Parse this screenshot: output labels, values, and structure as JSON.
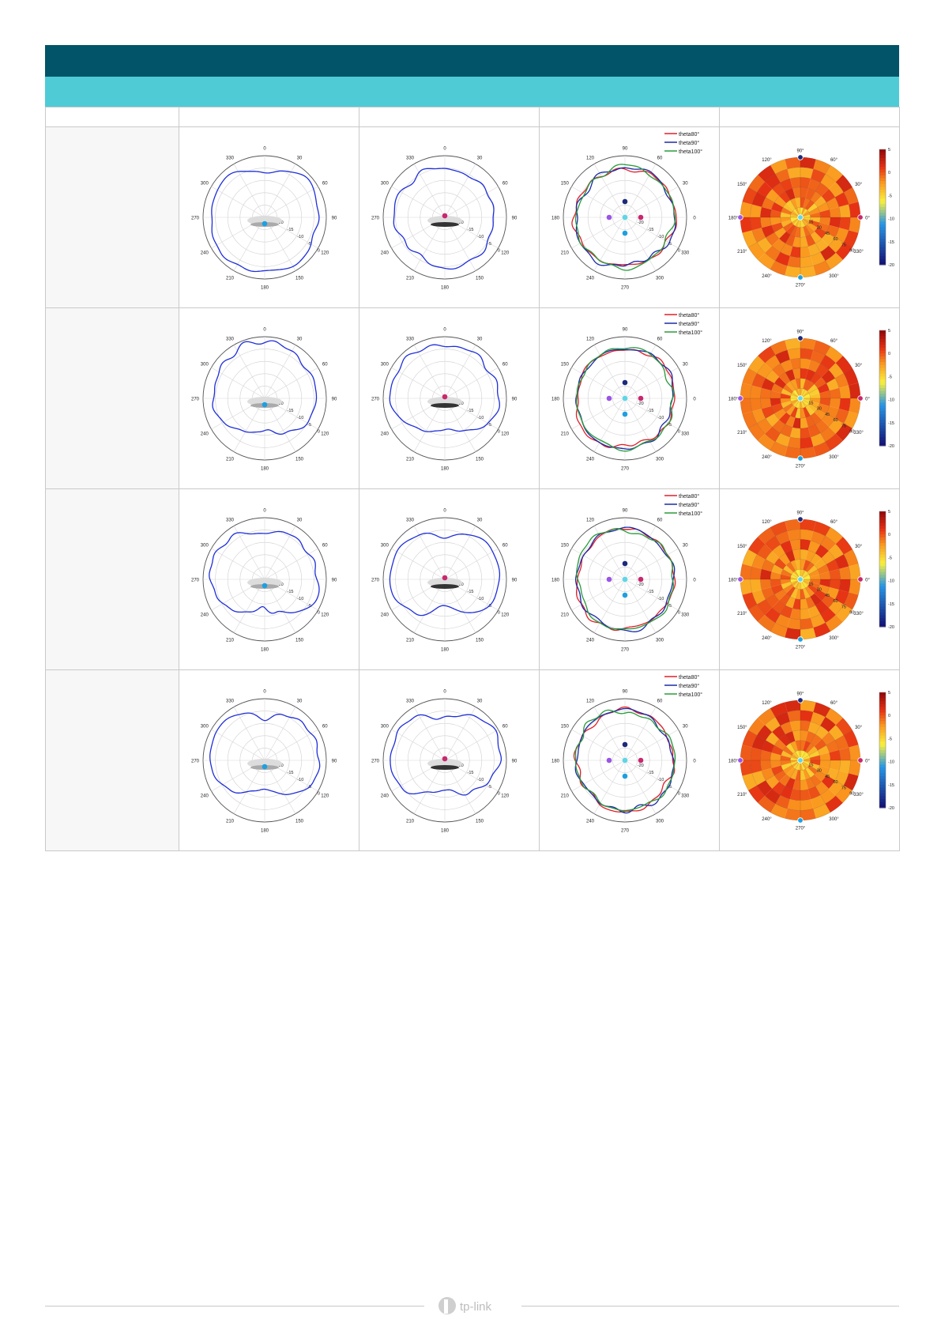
{
  "header": {
    "title": "",
    "subtitle": ""
  },
  "table": {
    "columns": [
      "",
      "",
      "",
      "",
      ""
    ],
    "rows": [
      {
        "label": ""
      },
      {
        "label": ""
      },
      {
        "label": ""
      },
      {
        "label": ""
      }
    ]
  },
  "colors": {
    "header_dark": "#025468",
    "header_light": "#4fcbd6",
    "trace_blue": "#1f2fd8",
    "theta80": "#e0202a",
    "theta90": "#1a2aa8",
    "theta100": "#2a9a3a",
    "dot_magenta": "#c8286e",
    "dot_cyan": "#1ea0e0",
    "dot_purple": "#9a55e6",
    "dot_navy": "#1c2a7a"
  },
  "polar_labels": {
    "angles_cw": [
      "0",
      "30",
      "60",
      "90",
      "120",
      "150",
      "180",
      "210",
      "240",
      "270",
      "300",
      "330"
    ],
    "rings": [
      "-20",
      "-15",
      "-10",
      "-5",
      "0"
    ],
    "angles_ccw": [
      "0",
      "30",
      "60",
      "90",
      "120",
      "150",
      "180",
      "210",
      "240",
      "270",
      "300",
      "330"
    ],
    "heat_angles": [
      "0°",
      "30°",
      "60°",
      "90°",
      "120°",
      "150°",
      "180°",
      "210°",
      "240°",
      "270°",
      "300°",
      "330°"
    ],
    "heat_radii": [
      "15",
      "30",
      "45",
      "60",
      "75",
      "90"
    ],
    "colorbar_ticks": [
      "5",
      "0",
      "-5",
      "-10",
      "-15",
      "-20"
    ]
  },
  "legend": [
    "theta80°",
    "theta90°",
    "theta100°"
  ],
  "footer": {
    "brand": "tp-link"
  },
  "chart_data": [
    {
      "type": "scatter",
      "title": "",
      "xlabel": "",
      "ylabel": "",
      "x": [
        0,
        30,
        60,
        90,
        120,
        150,
        180,
        210,
        240,
        270,
        300,
        330
      ],
      "series": [
        {
          "values": [
            -5,
            -1,
            0,
            -1,
            -4,
            -2,
            -1,
            -2,
            -4,
            -1,
            0,
            -1
          ]
        }
      ],
      "ylim": [
        -20,
        5
      ]
    },
    {
      "type": "scatter",
      "title": "",
      "xlabel": "",
      "ylabel": "",
      "x": [
        0,
        30,
        60,
        90,
        120,
        150,
        180,
        210,
        240,
        270,
        300,
        330
      ],
      "series": [
        {
          "values": [
            -1,
            -1,
            -2,
            -3,
            -4,
            -2,
            -5,
            -2,
            -4,
            -2,
            -2,
            -1
          ]
        }
      ],
      "ylim": [
        -20,
        5
      ]
    },
    {
      "type": "scatter",
      "title": "",
      "xlabel": "",
      "ylabel": "",
      "x": [
        0,
        30,
        60,
        90,
        120,
        150,
        180,
        210,
        240,
        270,
        300,
        330
      ],
      "series": [
        {
          "name": "theta80°",
          "values": [
            -1,
            -1,
            -1,
            -1,
            -1,
            -1,
            -1,
            -1,
            -1,
            -1,
            -1,
            -1
          ]
        },
        {
          "name": "theta90°",
          "values": [
            -1,
            -1,
            -1,
            -1,
            -1,
            -1,
            -1,
            -1,
            -1,
            -1,
            -1,
            -1
          ]
        },
        {
          "name": "theta100°",
          "values": [
            -2,
            -2,
            -2,
            -2,
            -2,
            -2,
            -2,
            -2,
            -2,
            -2,
            -2,
            -2
          ]
        }
      ],
      "ylim": [
        -20,
        5
      ]
    },
    {
      "type": "heatmap",
      "title": "",
      "xlabel": "",
      "ylabel": "",
      "colorbar": [
        -20,
        5
      ]
    },
    {
      "type": "scatter",
      "title": "",
      "xlabel": "",
      "ylabel": "",
      "x": [
        0,
        30,
        60,
        90,
        120,
        150,
        180,
        210,
        240,
        270,
        300,
        330
      ],
      "series": [
        {
          "values": [
            -2,
            -2,
            -3,
            -1,
            -4,
            -8,
            -2,
            -8,
            -4,
            -1,
            -3,
            -2
          ]
        }
      ],
      "ylim": [
        -20,
        5
      ]
    },
    {
      "type": "scatter",
      "title": "",
      "xlabel": "",
      "ylabel": "",
      "x": [
        0,
        30,
        60,
        90,
        120,
        150,
        180,
        210,
        240,
        270,
        300,
        330
      ],
      "series": [
        {
          "values": [
            -3,
            -2,
            -3,
            -1,
            -5,
            -10,
            -4,
            -10,
            -5,
            -1,
            -3,
            -2
          ]
        }
      ],
      "ylim": [
        -20,
        5
      ]
    },
    {
      "type": "scatter",
      "title": "",
      "xlabel": "",
      "ylabel": "",
      "x": [
        0,
        30,
        60,
        90,
        120,
        150,
        180,
        210,
        240,
        270,
        300,
        330
      ],
      "series": [
        {
          "name": "theta80°",
          "values": [
            -2,
            -3,
            -2,
            -3,
            -2,
            -3,
            -2,
            -3,
            -2,
            -3,
            -2,
            -3
          ]
        },
        {
          "name": "theta90°",
          "values": [
            -2,
            -3,
            -2,
            -3,
            -2,
            -3,
            -2,
            -3,
            -2,
            -3,
            -2,
            -3
          ]
        },
        {
          "name": "theta100°",
          "values": [
            -3,
            -4,
            -3,
            -4,
            -3,
            -4,
            -3,
            -4,
            -3,
            -4,
            -3,
            -4
          ]
        }
      ],
      "ylim": [
        -20,
        5
      ]
    },
    {
      "type": "heatmap",
      "title": "",
      "xlabel": "",
      "ylabel": "",
      "colorbar": [
        -20,
        5
      ]
    },
    {
      "type": "scatter",
      "title": "",
      "xlabel": "",
      "ylabel": "",
      "x": [
        0,
        30,
        60,
        90,
        120,
        150,
        180,
        210,
        240,
        270,
        300,
        330
      ],
      "series": [
        {
          "values": [
            -4,
            -3,
            -2,
            -1,
            -5,
            -7,
            -8,
            -7,
            -5,
            -1,
            -2,
            -3
          ]
        }
      ],
      "ylim": [
        -20,
        5
      ]
    },
    {
      "type": "scatter",
      "title": "",
      "xlabel": "",
      "ylabel": "",
      "x": [
        0,
        30,
        60,
        90,
        120,
        150,
        180,
        210,
        240,
        270,
        300,
        330
      ],
      "series": [
        {
          "values": [
            -12,
            -3,
            -1,
            -2,
            -10,
            -12,
            -14,
            -12,
            -10,
            -2,
            -2,
            -3
          ]
        }
      ],
      "ylim": [
        -20,
        5
      ]
    },
    {
      "type": "scatter",
      "title": "",
      "xlabel": "",
      "ylabel": "",
      "x": [
        0,
        30,
        60,
        90,
        120,
        150,
        180,
        210,
        240,
        270,
        300,
        330
      ],
      "series": [
        {
          "name": "theta80°",
          "values": [
            -2,
            -4,
            -1,
            -3,
            -2,
            -4,
            -1,
            -3,
            -2,
            -4,
            -1,
            -3
          ]
        },
        {
          "name": "theta90°",
          "values": [
            -2,
            -4,
            -1,
            -3,
            -2,
            -4,
            -1,
            -3,
            -2,
            -4,
            -1,
            -3
          ]
        },
        {
          "name": "theta100°",
          "values": [
            -4,
            -5,
            -3,
            -5,
            -4,
            -5,
            -3,
            -5,
            -4,
            -5,
            -3,
            -5
          ]
        }
      ],
      "ylim": [
        -20,
        5
      ]
    },
    {
      "type": "heatmap",
      "title": "",
      "xlabel": "",
      "ylabel": "",
      "colorbar": [
        -20,
        5
      ]
    },
    {
      "type": "scatter",
      "title": "",
      "xlabel": "",
      "ylabel": "",
      "x": [
        0,
        30,
        60,
        90,
        120,
        150,
        180,
        210,
        240,
        270,
        300,
        330
      ],
      "series": [
        {
          "values": [
            -4,
            -2,
            -3,
            -1,
            -5,
            -8,
            -8,
            -8,
            -5,
            -1,
            -3,
            -2
          ]
        }
      ],
      "ylim": [
        -20,
        5
      ]
    },
    {
      "type": "scatter",
      "title": "",
      "xlabel": "",
      "ylabel": "",
      "x": [
        0,
        30,
        60,
        90,
        120,
        150,
        180,
        210,
        240,
        270,
        300,
        330
      ],
      "series": [
        {
          "values": [
            -12,
            -2,
            -1,
            -2,
            -10,
            -12,
            -13,
            -12,
            -10,
            -2,
            -2,
            -2
          ]
        }
      ],
      "ylim": [
        -20,
        5
      ]
    },
    {
      "type": "scatter",
      "title": "",
      "xlabel": "",
      "ylabel": "",
      "x": [
        0,
        30,
        60,
        90,
        120,
        150,
        180,
        210,
        240,
        270,
        300,
        330
      ],
      "series": [
        {
          "name": "theta80°",
          "values": [
            -2,
            -3,
            -2,
            -3,
            -2,
            -3,
            -2,
            -3,
            -2,
            -3,
            -2,
            -3
          ]
        },
        {
          "name": "theta90°",
          "values": [
            -2,
            -3,
            -2,
            -3,
            -2,
            -3,
            -2,
            -3,
            -2,
            -3,
            -2,
            -3
          ]
        },
        {
          "name": "theta100°",
          "values": [
            -4,
            -5,
            -3,
            -5,
            -4,
            -5,
            -3,
            -5,
            -4,
            -5,
            -3,
            -5
          ]
        }
      ],
      "ylim": [
        -20,
        5
      ]
    },
    {
      "type": "heatmap",
      "title": "",
      "xlabel": "",
      "ylabel": "",
      "colorbar": [
        -20,
        5
      ]
    }
  ]
}
